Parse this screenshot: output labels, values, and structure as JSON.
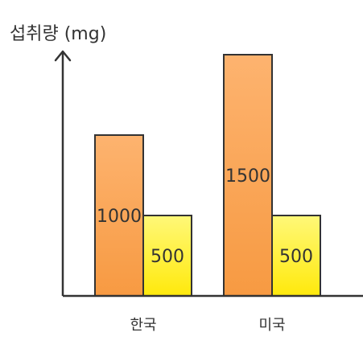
{
  "chart_data": {
    "type": "bar",
    "ylabel": "섭취량 (mg)",
    "xlabel": "",
    "categories": [
      "한국",
      "미국"
    ],
    "series": [
      {
        "values": [
          1000,
          1500
        ],
        "color": "#f79a42",
        "color_top": "#fdb36f"
      },
      {
        "values": [
          500,
          500
        ],
        "color": "#ffe90c",
        "color_top": "#fff878"
      }
    ],
    "ylim": [
      0,
      1500
    ],
    "grid": false,
    "legend": "none",
    "axis_arrow": true
  }
}
